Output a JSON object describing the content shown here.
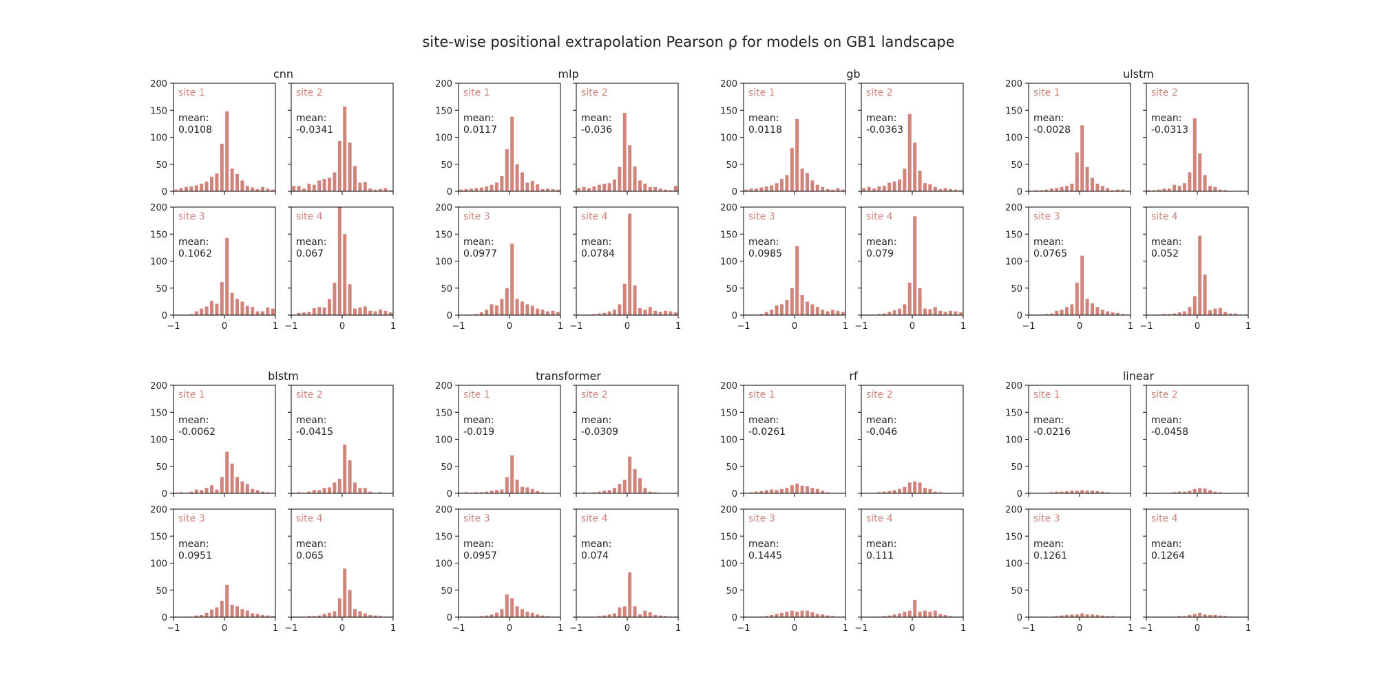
{
  "figure": {
    "title": "site-wise positional extrapolation Pearson ρ for models on GB1 landscape",
    "bar_color": "#d0847c",
    "label_color": "#d0847c",
    "text_color": "#222222"
  },
  "chart_data": {
    "type": "bar",
    "layout": "histogram grid, 2 rows of models x 4 models, each model 2x2 sites",
    "xlim": [
      -1,
      1
    ],
    "ylim": [
      0,
      200
    ],
    "x_ticks": [
      "−1",
      "0",
      "1"
    ],
    "y_ticks": [
      "0",
      "50",
      "100",
      "150",
      "200"
    ],
    "bin_centers": [
      -0.95,
      -0.85,
      -0.75,
      -0.65,
      -0.55,
      -0.45,
      -0.35,
      -0.25,
      -0.15,
      -0.05,
      0.05,
      0.15,
      0.25,
      0.35,
      0.45,
      0.55,
      0.65,
      0.75,
      0.85,
      0.95
    ],
    "mean_prefix": "mean:",
    "models": [
      {
        "name": "cnn",
        "sites": [
          {
            "label": "site 1",
            "mean": "0.0108",
            "counts": [
              3,
              6,
              8,
              9,
              11,
              14,
              18,
              27,
              33,
              88,
              148,
              42,
              32,
              20,
              10,
              7,
              4,
              8,
              5,
              3
            ]
          },
          {
            "label": "site 2",
            "mean": "-0.0341",
            "counts": [
              10,
              10,
              5,
              14,
              12,
              20,
              23,
              25,
              35,
              93,
              157,
              90,
              47,
              16,
              17,
              5,
              3,
              4,
              6,
              2
            ]
          },
          {
            "label": "site 3",
            "mean": "0.1062",
            "counts": [
              1,
              1,
              1,
              2,
              7,
              12,
              16,
              26,
              21,
              61,
              143,
              41,
              30,
              25,
              17,
              15,
              7,
              7,
              14,
              12
            ]
          },
          {
            "label": "site 4",
            "mean": "0.067",
            "counts": [
              1,
              4,
              5,
              6,
              13,
              15,
              14,
              30,
              60,
              200,
              150,
              57,
              12,
              14,
              16,
              8,
              7,
              10,
              8,
              5
            ]
          }
        ]
      },
      {
        "name": "mlp",
        "sites": [
          {
            "label": "site 1",
            "mean": "0.0117",
            "counts": [
              3,
              4,
              5,
              6,
              7,
              9,
              12,
              16,
              28,
              78,
              138,
              50,
              35,
              16,
              19,
              13,
              4,
              5,
              4,
              3
            ]
          },
          {
            "label": "site 2",
            "mean": "-0.036",
            "counts": [
              6,
              8,
              6,
              9,
              12,
              14,
              15,
              22,
              45,
              145,
              85,
              46,
              20,
              14,
              8,
              8,
              5,
              3,
              2,
              10
            ]
          },
          {
            "label": "site 3",
            "mean": "0.0977",
            "counts": [
              1,
              1,
              1,
              2,
              5,
              10,
              20,
              18,
              30,
              50,
              132,
              30,
              25,
              20,
              17,
              12,
              10,
              7,
              8,
              6
            ]
          },
          {
            "label": "site 4",
            "mean": "0.0784",
            "counts": [
              1,
              1,
              1,
              2,
              3,
              4,
              7,
              10,
              20,
              58,
              188,
              55,
              13,
              10,
              15,
              8,
              6,
              8,
              7,
              5
            ]
          }
        ]
      },
      {
        "name": "gb",
        "sites": [
          {
            "label": "site 1",
            "mean": "0.0118",
            "counts": [
              3,
              5,
              5,
              7,
              9,
              11,
              15,
              23,
              30,
              80,
              134,
              42,
              34,
              20,
              12,
              8,
              4,
              3,
              6,
              3
            ]
          },
          {
            "label": "site 2",
            "mean": "-0.0363",
            "counts": [
              6,
              8,
              5,
              9,
              10,
              16,
              18,
              22,
              42,
              143,
              90,
              38,
              15,
              13,
              8,
              4,
              6,
              4,
              3,
              2
            ]
          },
          {
            "label": "site 3",
            "mean": "0.0985",
            "counts": [
              1,
              1,
              1,
              2,
              6,
              10,
              18,
              20,
              28,
              50,
              128,
              37,
              25,
              20,
              15,
              10,
              7,
              10,
              8,
              6
            ]
          },
          {
            "label": "site 4",
            "mean": "0.079",
            "counts": [
              1,
              1,
              1,
              2,
              3,
              6,
              9,
              12,
              20,
              60,
              183,
              50,
              12,
              11,
              15,
              8,
              6,
              8,
              7,
              5
            ]
          }
        ]
      },
      {
        "name": "ulstm",
        "sites": [
          {
            "label": "site 1",
            "mean": "-0.0028",
            "counts": [
              1,
              2,
              2,
              3,
              5,
              6,
              8,
              10,
              14,
              72,
              122,
              45,
              25,
              14,
              10,
              6,
              2,
              3,
              3,
              1
            ]
          },
          {
            "label": "site 2",
            "mean": "-0.0313",
            "counts": [
              2,
              2,
              3,
              5,
              5,
              12,
              10,
              15,
              35,
              135,
              70,
              30,
              10,
              8,
              3,
              2,
              1,
              1,
              1,
              1
            ]
          },
          {
            "label": "site 3",
            "mean": "0.0765",
            "counts": [
              1,
              1,
              1,
              2,
              3,
              8,
              10,
              15,
              20,
              60,
              110,
              30,
              22,
              15,
              10,
              7,
              5,
              4,
              2,
              1
            ]
          },
          {
            "label": "site 4",
            "mean": "0.052",
            "counts": [
              1,
              1,
              1,
              2,
              2,
              3,
              5,
              7,
              15,
              35,
              147,
              75,
              9,
              12,
              13,
              6,
              3,
              3,
              1,
              1
            ]
          }
        ]
      },
      {
        "name": "blstm",
        "sites": [
          {
            "label": "site 1",
            "mean": "-0.0062",
            "counts": [
              1,
              2,
              1,
              3,
              7,
              6,
              10,
              15,
              7,
              30,
              77,
              55,
              30,
              22,
              17,
              8,
              6,
              3,
              2,
              1
            ]
          },
          {
            "label": "site 2",
            "mean": "-0.0415",
            "counts": [
              1,
              2,
              1,
              3,
              6,
              6,
              10,
              11,
              20,
              27,
              90,
              61,
              20,
              10,
              10,
              3,
              1,
              2,
              1,
              1
            ]
          },
          {
            "label": "site 3",
            "mean": "0.0951",
            "counts": [
              1,
              1,
              1,
              1,
              3,
              4,
              8,
              14,
              18,
              30,
              60,
              23,
              20,
              15,
              12,
              7,
              6,
              4,
              3,
              2
            ]
          },
          {
            "label": "site 4",
            "mean": "0.065",
            "counts": [
              1,
              1,
              1,
              2,
              2,
              3,
              6,
              8,
              11,
              35,
              90,
              50,
              15,
              11,
              7,
              4,
              3,
              2,
              1,
              1
            ]
          }
        ]
      },
      {
        "name": "transformer",
        "sites": [
          {
            "label": "site 1",
            "mean": "-0.019",
            "counts": [
              1,
              2,
              1,
              2,
              2,
              3,
              5,
              6,
              7,
              30,
              70,
              25,
              12,
              11,
              8,
              4,
              2,
              1,
              1,
              1
            ]
          },
          {
            "label": "site 2",
            "mean": "-0.0309",
            "counts": [
              1,
              2,
              1,
              2,
              3,
              5,
              6,
              10,
              17,
              25,
              68,
              45,
              28,
              10,
              3,
              2,
              1,
              1,
              1,
              1
            ]
          },
          {
            "label": "site 3",
            "mean": "0.0957",
            "counts": [
              1,
              1,
              1,
              1,
              2,
              3,
              5,
              8,
              15,
              42,
              35,
              20,
              15,
              10,
              8,
              5,
              3,
              2,
              1,
              1
            ]
          },
          {
            "label": "site 4",
            "mean": "0.074",
            "counts": [
              1,
              1,
              1,
              1,
              2,
              3,
              5,
              7,
              18,
              20,
              83,
              20,
              5,
              12,
              9,
              4,
              3,
              2,
              1,
              1
            ]
          }
        ]
      },
      {
        "name": "rf",
        "sites": [
          {
            "label": "site 1",
            "mean": "-0.0261",
            "counts": [
              1,
              2,
              3,
              4,
              6,
              7,
              6,
              8,
              10,
              15,
              18,
              14,
              13,
              10,
              8,
              5,
              2,
              1,
              1,
              1
            ]
          },
          {
            "label": "site 2",
            "mean": "-0.046",
            "counts": [
              1,
              1,
              1,
              2,
              3,
              4,
              6,
              8,
              12,
              20,
              22,
              20,
              10,
              8,
              3,
              2,
              1,
              1,
              1,
              1
            ]
          },
          {
            "label": "site 3",
            "mean": "0.1445",
            "counts": [
              1,
              1,
              1,
              1,
              2,
              4,
              6,
              8,
              10,
              12,
              10,
              12,
              12,
              9,
              6,
              5,
              3,
              2,
              1,
              1
            ]
          },
          {
            "label": "site 4",
            "mean": "0.111",
            "counts": [
              1,
              1,
              1,
              1,
              2,
              3,
              5,
              7,
              10,
              12,
              32,
              10,
              12,
              10,
              12,
              6,
              4,
              2,
              1,
              1
            ]
          }
        ]
      },
      {
        "name": "linear",
        "sites": [
          {
            "label": "site 1",
            "mean": "-0.0216",
            "counts": [
              1,
              1,
              1,
              1,
              2,
              3,
              3,
              4,
              5,
              5,
              6,
              5,
              5,
              4,
              3,
              2,
              1,
              1,
              1,
              1
            ]
          },
          {
            "label": "site 2",
            "mean": "-0.0458",
            "counts": [
              1,
              1,
              1,
              1,
              1,
              2,
              3,
              3,
              5,
              8,
              10,
              9,
              6,
              3,
              2,
              1,
              1,
              1,
              1,
              1
            ]
          },
          {
            "label": "site 3",
            "mean": "0.1261",
            "counts": [
              1,
              1,
              1,
              1,
              1,
              2,
              3,
              4,
              5,
              5,
              7,
              5,
              5,
              4,
              3,
              2,
              2,
              1,
              1,
              1
            ]
          },
          {
            "label": "site 4",
            "mean": "0.1264",
            "counts": [
              1,
              1,
              1,
              1,
              1,
              1,
              2,
              2,
              4,
              6,
              8,
              5,
              4,
              4,
              3,
              2,
              1,
              1,
              1,
              1
            ]
          }
        ]
      }
    ]
  }
}
